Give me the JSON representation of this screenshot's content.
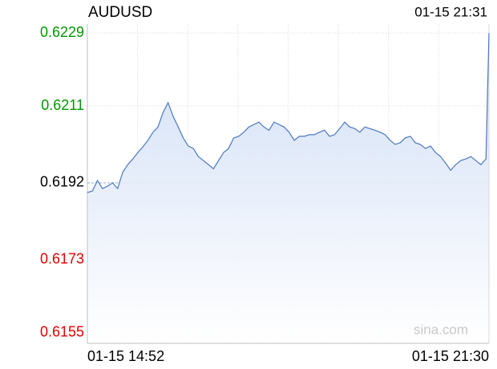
{
  "chart_data": {
    "type": "line",
    "title": "AUDUSD",
    "timestamp": "01-15 21:31",
    "watermark": "sina.com",
    "color": "#4a78c0",
    "up_color": "#009900",
    "down_color": "#e00000",
    "reference_line": 0.6192,
    "ylim": [
      0.61524,
      0.62312
    ],
    "yticks": [
      0.6229,
      0.6211,
      0.6192,
      0.6173,
      0.6155
    ],
    "xlim": [
      0,
      398
    ],
    "xticks": [
      {
        "value": 0,
        "label": "01-15 14:52"
      },
      {
        "value": 398,
        "label": "01-15 21:30"
      }
    ],
    "x": [
      0,
      5,
      10,
      15,
      20,
      25,
      30,
      35,
      40,
      45,
      50,
      55,
      60,
      65,
      70,
      75,
      80,
      85,
      90,
      95,
      100,
      105,
      110,
      115,
      120,
      125,
      130,
      135,
      140,
      145,
      150,
      155,
      160,
      165,
      170,
      175,
      180,
      185,
      190,
      195,
      200,
      205,
      210,
      215,
      220,
      225,
      230,
      235,
      240,
      245,
      250,
      255,
      260,
      265,
      270,
      275,
      280,
      285,
      290,
      295,
      300,
      305,
      310,
      315,
      320,
      325,
      330,
      335,
      340,
      345,
      350,
      355,
      360,
      365,
      370,
      375,
      380,
      385,
      390,
      395,
      398
    ],
    "values": [
      0.61896,
      0.619,
      0.61926,
      0.61906,
      0.61912,
      0.6192,
      0.61906,
      0.61946,
      0.61965,
      0.61979,
      0.61995,
      0.62009,
      0.62025,
      0.62045,
      0.62058,
      0.62094,
      0.62118,
      0.62084,
      0.62058,
      0.62031,
      0.62011,
      0.62005,
      0.61985,
      0.61975,
      0.61965,
      0.61955,
      0.61975,
      0.61995,
      0.62005,
      0.62031,
      0.62035,
      0.62045,
      0.62058,
      0.62064,
      0.6207,
      0.62058,
      0.6205,
      0.6207,
      0.62064,
      0.62058,
      0.62045,
      0.62025,
      0.62035,
      0.62035,
      0.62039,
      0.62039,
      0.62045,
      0.6205,
      0.62035,
      0.62039,
      0.62054,
      0.6207,
      0.62058,
      0.62054,
      0.62045,
      0.62058,
      0.62054,
      0.6205,
      0.62045,
      0.62039,
      0.62025,
      0.62015,
      0.62019,
      0.62031,
      0.62035,
      0.62019,
      0.62015,
      0.62005,
      0.62011,
      0.61995,
      0.61985,
      0.61969,
      0.61951,
      0.61965,
      0.61975,
      0.61979,
      0.61985,
      0.61975,
      0.61965,
      0.61979,
      0.6229
    ]
  }
}
